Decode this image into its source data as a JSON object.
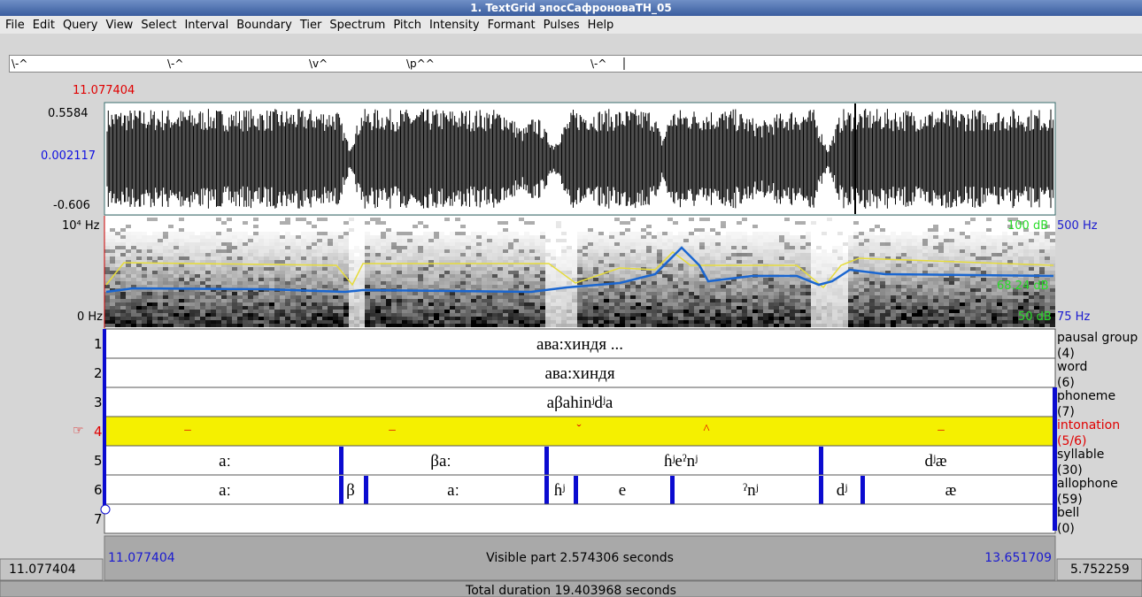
{
  "window": {
    "title": "1. TextGrid эпосСафроноваТН_05"
  },
  "menu": [
    "File",
    "Edit",
    "Query",
    "View",
    "Select",
    "Interval",
    "Boundary",
    "Tier",
    "Spectrum",
    "Pitch",
    "Intensity",
    "Formant",
    "Pulses",
    "Help"
  ],
  "text_field": [
    "\\-^",
    "\\-^",
    "\\v^",
    "\\p^^",
    "\\-^"
  ],
  "cursor_time": "11.077404",
  "waveform": {
    "max": "0.5584",
    "mid": "0.002117",
    "min": "-0.606"
  },
  "spectrogram": {
    "top": "10⁴ Hz",
    "bottom": "0 Hz",
    "intensity_top": "100 dB",
    "pitch_top": "500 Hz",
    "intensity_mid": "68.24 dB",
    "intensity_bottom": "50 dB",
    "pitch_bottom": "75 Hz"
  },
  "selected_marker": "☞",
  "tiers": [
    {
      "number": "1",
      "name": "pausal group",
      "count": "(4)",
      "intervals": [
        "ава:хиндя ..."
      ]
    },
    {
      "number": "2",
      "name": "word",
      "count": "(6)",
      "intervals": [
        "ава:хиндя"
      ]
    },
    {
      "number": "3",
      "name": "phoneme",
      "count": "(7)",
      "intervals": [
        "aβahinʲdʲa"
      ]
    },
    {
      "number": "4",
      "name": "intonation",
      "count": "(5/6)",
      "intervals": [
        "–",
        "–",
        "ˇ",
        "^",
        "–"
      ]
    },
    {
      "number": "5",
      "name": "syllable",
      "count": "(30)",
      "intervals": [
        "aː",
        "βaː",
        "ɦʲeˀnʲ",
        "dʲæ"
      ]
    },
    {
      "number": "6",
      "name": "allophone",
      "count": "(59)",
      "intervals": [
        "aː",
        "β",
        "aː",
        "ɦʲ",
        "e",
        "ˀnʲ",
        "dʲ",
        "æ"
      ]
    },
    {
      "number": "7",
      "name": "bell",
      "count": "(0)",
      "intervals": []
    }
  ],
  "visible": {
    "start": "11.077404",
    "label": "Visible part 2.574306 seconds",
    "end": "13.651709"
  },
  "window_start": "11.077404",
  "window_end": "5.752259",
  "total": "Total duration 19.403968 seconds"
}
